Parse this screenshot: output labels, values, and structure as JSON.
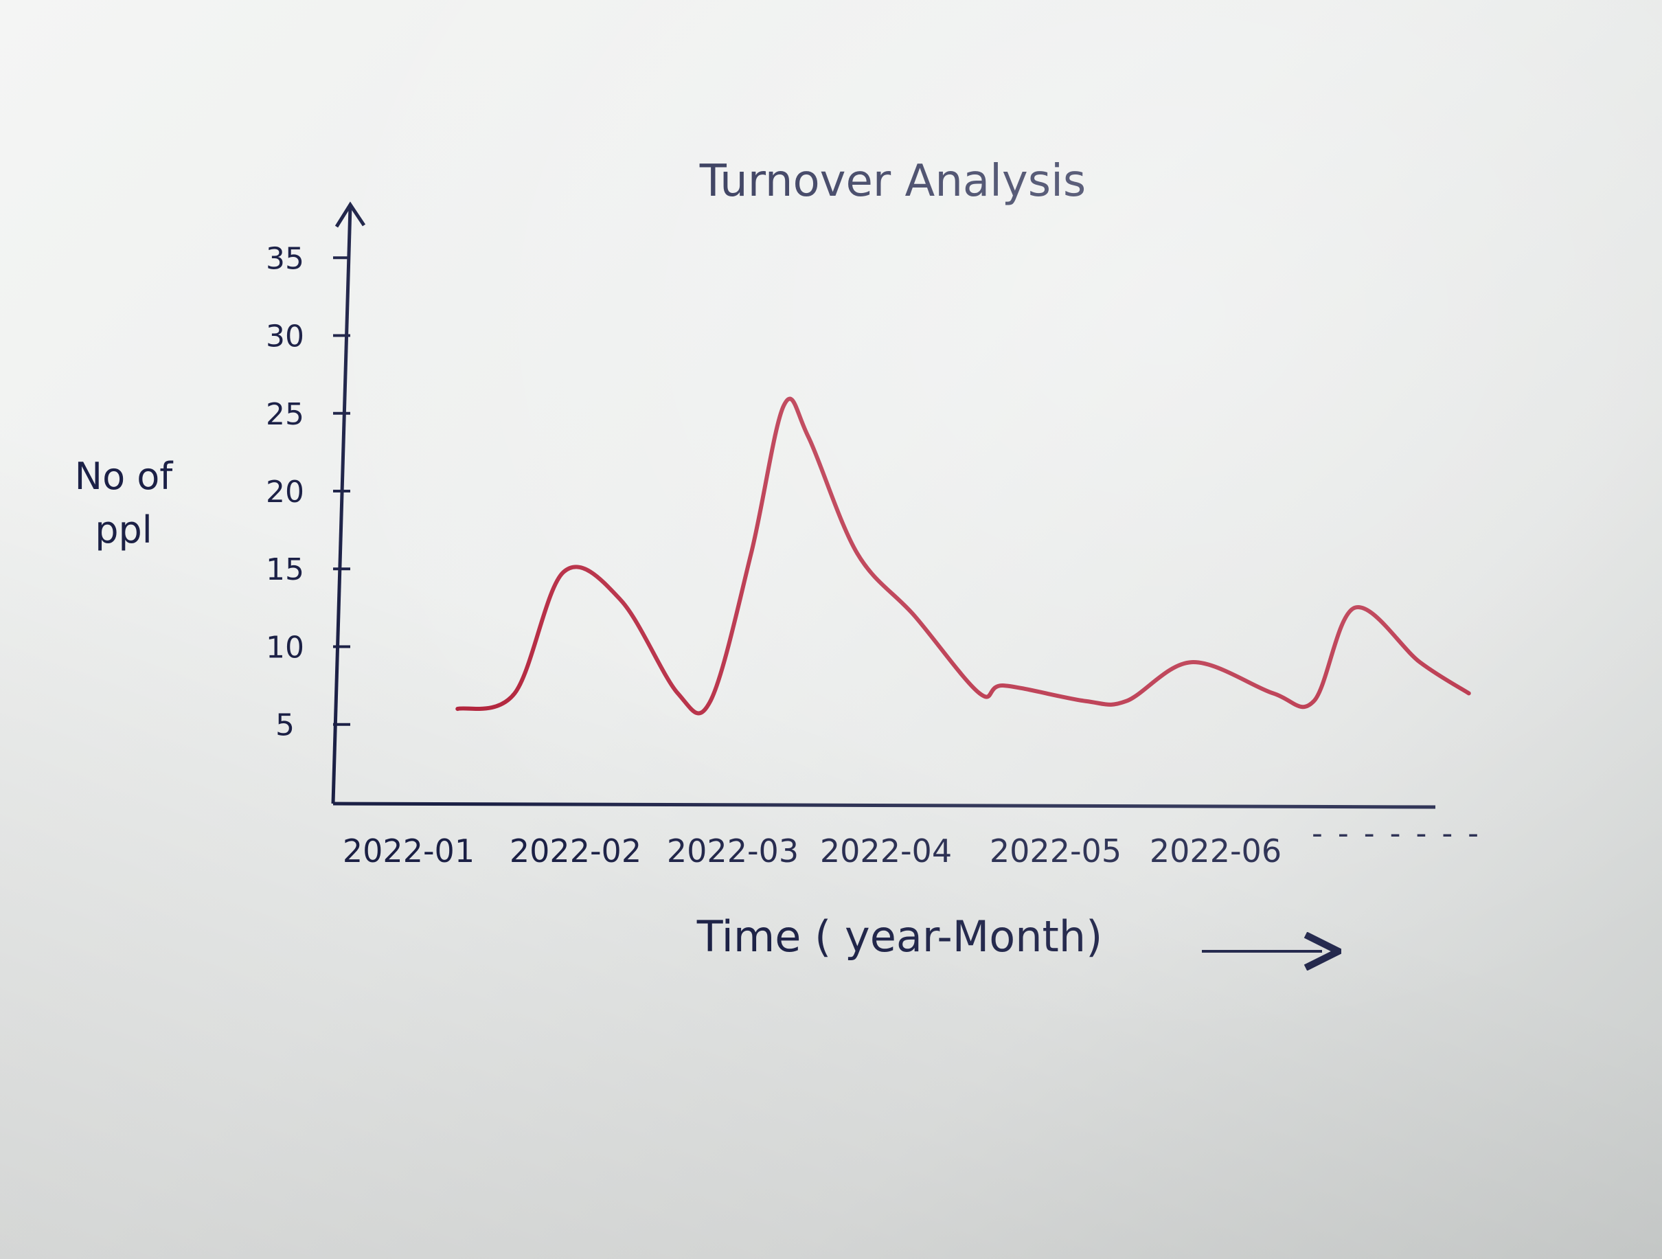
{
  "chart_data": {
    "type": "line",
    "title": "Turnover Analysis",
    "xlabel": "Time ( year-Month)",
    "ylabel": "No of ppl",
    "x_tick_labels": [
      "2022-01",
      "2022-02",
      "2022-03",
      "2022-04",
      "2022-05",
      "2022-06"
    ],
    "x_continuation": "- - - - - - -",
    "y_ticks": [
      5,
      10,
      15,
      20,
      25,
      30,
      35
    ],
    "series": [
      {
        "color": "#b3213a",
        "x": [
          0.0,
          0.35,
          0.65,
          1.0,
          1.35,
          1.55,
          1.8,
          2.0,
          2.15,
          2.45,
          2.8,
          3.2,
          3.35,
          3.85,
          4.1,
          4.5,
          5.0,
          5.25,
          5.5,
          5.9,
          6.2
        ],
        "y": [
          6,
          7,
          14.8,
          13,
          7,
          6.5,
          16,
          25.5,
          23.5,
          16,
          12,
          7,
          7.5,
          6.5,
          6.5,
          9,
          7,
          6.5,
          12.5,
          9,
          7
        ]
      }
    ],
    "ylim": [
      3,
      37
    ],
    "xlim": [
      -0.3,
      6.5
    ],
    "grid": false
  }
}
